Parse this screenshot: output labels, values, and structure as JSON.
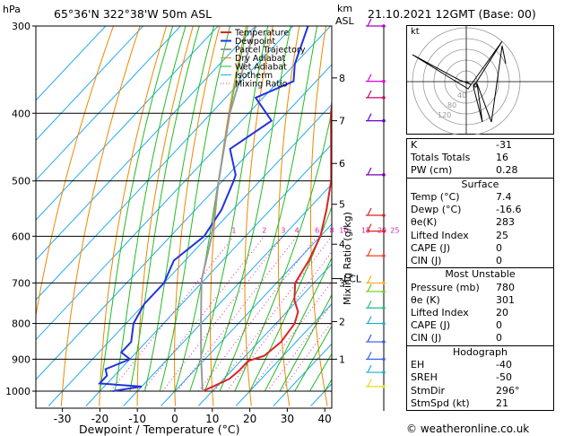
{
  "header": {
    "unit_p": "hPa",
    "station": "65°36'N  322°38'W  50m  ASL",
    "unit_km": "km",
    "unit_asl": "ASL",
    "datetime": "21.10.2021  12GMT  (Base: 00)"
  },
  "footer": {
    "credit": "© weatheronline.co.uk"
  },
  "chart_data": {
    "type": "line",
    "xlabel": "Dewpoint / Temperature (°C)",
    "ylabel_right": "Mixing Ratio (g/kg)",
    "x_ticks": [
      -30,
      -20,
      -10,
      0,
      10,
      20,
      30,
      40
    ],
    "p_ticks": [
      300,
      400,
      500,
      600,
      700,
      800,
      900,
      1000
    ],
    "km_ticks": [
      {
        "km": "8",
        "p": 356
      },
      {
        "km": "7",
        "p": 410
      },
      {
        "km": "6",
        "p": 472
      },
      {
        "km": "5",
        "p": 540
      },
      {
        "km": "4",
        "p": 616
      },
      {
        "km": "3",
        "p": 700
      },
      {
        "km": "2",
        "p": 795
      },
      {
        "km": "1",
        "p": 900
      }
    ],
    "lcl_label": "LCL",
    "lcl_p": 690,
    "mixing_ratio_labels": [
      "1",
      "2",
      "3",
      "4",
      "6",
      "8",
      "10",
      "15",
      "20",
      "25"
    ],
    "legend": [
      "Temperature",
      "Dewpoint",
      "Parcel Trajectory",
      "Dry Adiabat",
      "Wet Adiabat",
      "Isotherm",
      "Mixing Ratio"
    ],
    "colors": {
      "temperature": "#dd2222",
      "dewpoint": "#2233dd",
      "parcel": "#999999",
      "dry_adiabat": "#ee8800",
      "wet_adiabat": "#22bb22",
      "isotherm": "#22aaee",
      "mixing_ratio": "#dd22aa"
    },
    "series": [
      {
        "name": "Temperature",
        "points": [
          [
            1000,
            7.4
          ],
          [
            985,
            9
          ],
          [
            960,
            11.5
          ],
          [
            935,
            12
          ],
          [
            905,
            12
          ],
          [
            890,
            15
          ],
          [
            850,
            16
          ],
          [
            800,
            15
          ],
          [
            770,
            13
          ],
          [
            740,
            9
          ],
          [
            700,
            5
          ],
          [
            650,
            3
          ],
          [
            600,
            0
          ],
          [
            550,
            -5
          ],
          [
            500,
            -11
          ],
          [
            450,
            -19
          ],
          [
            400,
            -28
          ],
          [
            350,
            -37
          ],
          [
            320,
            -43
          ],
          [
            300,
            -48
          ]
        ]
      },
      {
        "name": "Dewpoint",
        "points": [
          [
            1000,
            -16.6
          ],
          [
            985,
            -10
          ],
          [
            975,
            -22
          ],
          [
            950,
            -22
          ],
          [
            930,
            -24
          ],
          [
            900,
            -20
          ],
          [
            880,
            -24
          ],
          [
            850,
            -24
          ],
          [
            800,
            -28
          ],
          [
            750,
            -30
          ],
          [
            700,
            -30
          ],
          [
            650,
            -33
          ],
          [
            600,
            -31
          ],
          [
            550,
            -33
          ],
          [
            500,
            -37
          ],
          [
            490,
            -38
          ],
          [
            450,
            -46
          ],
          [
            410,
            -42
          ],
          [
            380,
            -52
          ],
          [
            360,
            -46
          ],
          [
            340,
            -50
          ],
          [
            300,
            -56
          ]
        ]
      },
      {
        "name": "Parcel Trajectory",
        "points": [
          [
            1000,
            7.4
          ],
          [
            900,
            -1
          ],
          [
            800,
            -10
          ],
          [
            700,
            -20
          ],
          [
            690,
            -21
          ],
          [
            600,
            -29
          ],
          [
            500,
            -41
          ],
          [
            400,
            -55
          ],
          [
            300,
            -70
          ]
        ]
      }
    ],
    "hodograph": {
      "label": "kt",
      "ring_labels": [
        "40",
        "80",
        "120"
      ]
    }
  },
  "indices": {
    "general": [
      {
        "label": "K",
        "value": "-31"
      },
      {
        "label": "Totals Totals",
        "value": "16"
      },
      {
        "label": "PW (cm)",
        "value": "0.28"
      }
    ],
    "surface_title": "Surface",
    "surface": [
      {
        "label": "Temp (°C)",
        "value": "7.4"
      },
      {
        "label": "Dewp (°C)",
        "value": "-16.6"
      },
      {
        "label": "θe(K)",
        "value": "283"
      },
      {
        "label": "Lifted Index",
        "value": "25"
      },
      {
        "label": "CAPE (J)",
        "value": "0"
      },
      {
        "label": "CIN (J)",
        "value": "0"
      }
    ],
    "unstable_title": "Most Unstable",
    "unstable": [
      {
        "label": "Pressure (mb)",
        "value": "780"
      },
      {
        "label": "θe (K)",
        "value": "301"
      },
      {
        "label": "Lifted Index",
        "value": "20"
      },
      {
        "label": "CAPE (J)",
        "value": "0"
      },
      {
        "label": "CIN (J)",
        "value": "0"
      }
    ],
    "hodograph_title": "Hodograph",
    "hodo": [
      {
        "label": "EH",
        "value": "-40"
      },
      {
        "label": "SREH",
        "value": "-50"
      },
      {
        "label": "StmDir",
        "value": "296°"
      },
      {
        "label": "StmSpd (kt)",
        "value": "21"
      }
    ]
  }
}
